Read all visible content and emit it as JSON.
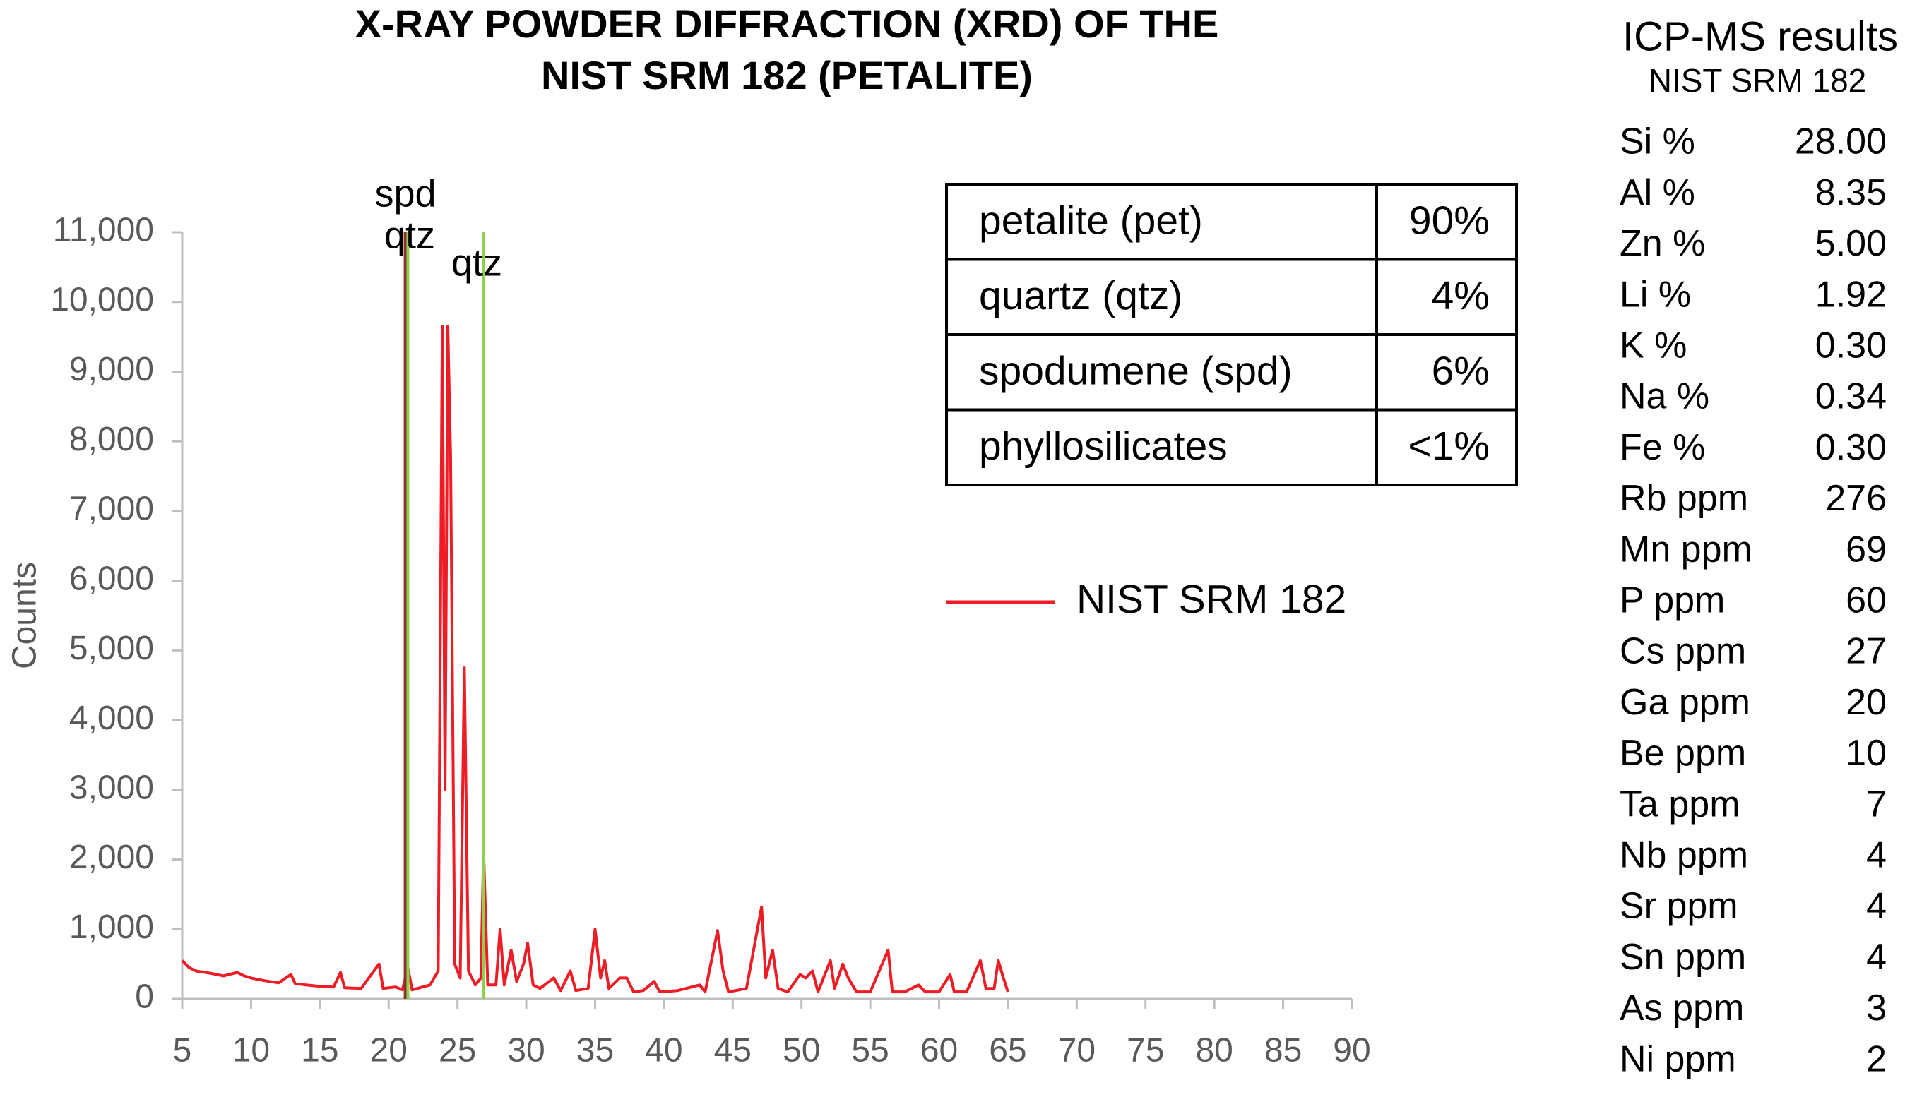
{
  "chart_data": {
    "type": "line",
    "title": "X-RAY POWDER DIFFRACTION (XRD) OF THE",
    "subtitle": "NIST SRM 182 (PETALITE)",
    "y_label": "Counts",
    "xlim": [
      5,
      90
    ],
    "xticks": [
      5,
      10,
      15,
      20,
      25,
      30,
      35,
      40,
      45,
      50,
      55,
      60,
      65,
      70,
      75,
      80,
      85,
      90
    ],
    "ylim": [
      0,
      11000
    ],
    "yticks": [
      0,
      {
        "value": 1000,
        "label": "1,000"
      },
      {
        "value": 2000,
        "label": "2,000"
      },
      {
        "value": 3000,
        "label": "3,000"
      },
      {
        "value": 4000,
        "label": "4,000"
      },
      {
        "value": 5000,
        "label": "5,000"
      },
      {
        "value": 6000,
        "label": "6,000"
      },
      {
        "value": 7000,
        "label": "7,000"
      },
      {
        "value": 8000,
        "label": "8,000"
      },
      {
        "value": 9000,
        "label": "9,000"
      },
      {
        "value": 10000,
        "label": "10,000"
      },
      {
        "value": 11000,
        "label": "11,000"
      }
    ],
    "series": [
      {
        "name": "NIST SRM 182",
        "color": "#ee1c25",
        "x": [
          5,
          5.5,
          6,
          7,
          8,
          9,
          9.5,
          10,
          11,
          12,
          12.9,
          13.2,
          14,
          15,
          16,
          16.5,
          16.8,
          18,
          19.3,
          19.6,
          20.5,
          21,
          21.4,
          21.7,
          23,
          23.6,
          23.9,
          24.1,
          24.3,
          24.5,
          24.8,
          25.2,
          25.5,
          25.8,
          26.3,
          26.7,
          26.9,
          27.2,
          27.8,
          28.1,
          28.4,
          28.9,
          29.3,
          29.8,
          30.1,
          30.5,
          31,
          32,
          32.5,
          33.2,
          33.6,
          34.5,
          35,
          35.4,
          35.7,
          36,
          36.8,
          37.3,
          37.8,
          38.5,
          39.3,
          39.7,
          41,
          42.6,
          43,
          43.9,
          44.3,
          44.7,
          46,
          47.1,
          47.4,
          47.9,
          48.3,
          49,
          49.9,
          50.3,
          50.8,
          51.2,
          52.1,
          52.4,
          53,
          53.4,
          54,
          55,
          56.3,
          56.6,
          57.5,
          58.5,
          59,
          60,
          60.8,
          61.1,
          62,
          63,
          63.4,
          64,
          64.3,
          64.6,
          65
        ],
        "values": [
          550,
          450,
          400,
          370,
          330,
          380,
          330,
          300,
          260,
          230,
          350,
          220,
          200,
          180,
          170,
          380,
          160,
          150,
          500,
          150,
          170,
          130,
          450,
          130,
          200,
          400,
          9650,
          3000,
          9650,
          7800,
          500,
          300,
          4750,
          400,
          200,
          300,
          2100,
          200,
          200,
          1000,
          200,
          700,
          250,
          500,
          800,
          200,
          150,
          300,
          120,
          400,
          120,
          150,
          1000,
          300,
          550,
          150,
          300,
          300,
          100,
          120,
          250,
          100,
          120,
          200,
          100,
          980,
          400,
          100,
          150,
          1320,
          300,
          700,
          150,
          100,
          350,
          300,
          400,
          100,
          550,
          150,
          500,
          300,
          100,
          100,
          700,
          100,
          100,
          200,
          100,
          100,
          350,
          100,
          100,
          550,
          150,
          150,
          550,
          350,
          100
        ]
      }
    ],
    "reference_lines": [
      {
        "label": "spd",
        "x": 21.2,
        "color": "#8b2f2f"
      },
      {
        "label": "qtz",
        "x": 21.4,
        "color": "#8fd14f"
      },
      {
        "label": "qtz",
        "x": 26.9,
        "color": "#8fd14f"
      }
    ],
    "legend": "right",
    "phase_table": [
      [
        "petalite (pet)",
        "90%"
      ],
      [
        "quartz (qtz)",
        "4%"
      ],
      [
        "spodumene (spd)",
        "6%"
      ],
      [
        "phyllosilicates",
        "<1%"
      ]
    ],
    "icp": {
      "title": "ICP-MS results",
      "subtitle": "NIST SRM 182",
      "rows": [
        [
          "Si %",
          "28.00"
        ],
        [
          "Al %",
          "8.35"
        ],
        [
          "Zn %",
          "5.00"
        ],
        [
          "Li %",
          "1.92"
        ],
        [
          "K %",
          "0.30"
        ],
        [
          "Na %",
          "0.34"
        ],
        [
          "Fe %",
          "0.30"
        ],
        [
          "Rb ppm",
          "276"
        ],
        [
          "Mn ppm",
          "69"
        ],
        [
          "P ppm",
          "60"
        ],
        [
          "Cs ppm",
          "27"
        ],
        [
          "Ga ppm",
          "20"
        ],
        [
          "Be ppm",
          "10"
        ],
        [
          "Ta ppm",
          "7"
        ],
        [
          "Nb ppm",
          "4"
        ],
        [
          "Sr ppm",
          "4"
        ],
        [
          "Sn ppm",
          "4"
        ],
        [
          "As ppm",
          "3"
        ],
        [
          "Ni ppm",
          "2"
        ]
      ]
    }
  }
}
